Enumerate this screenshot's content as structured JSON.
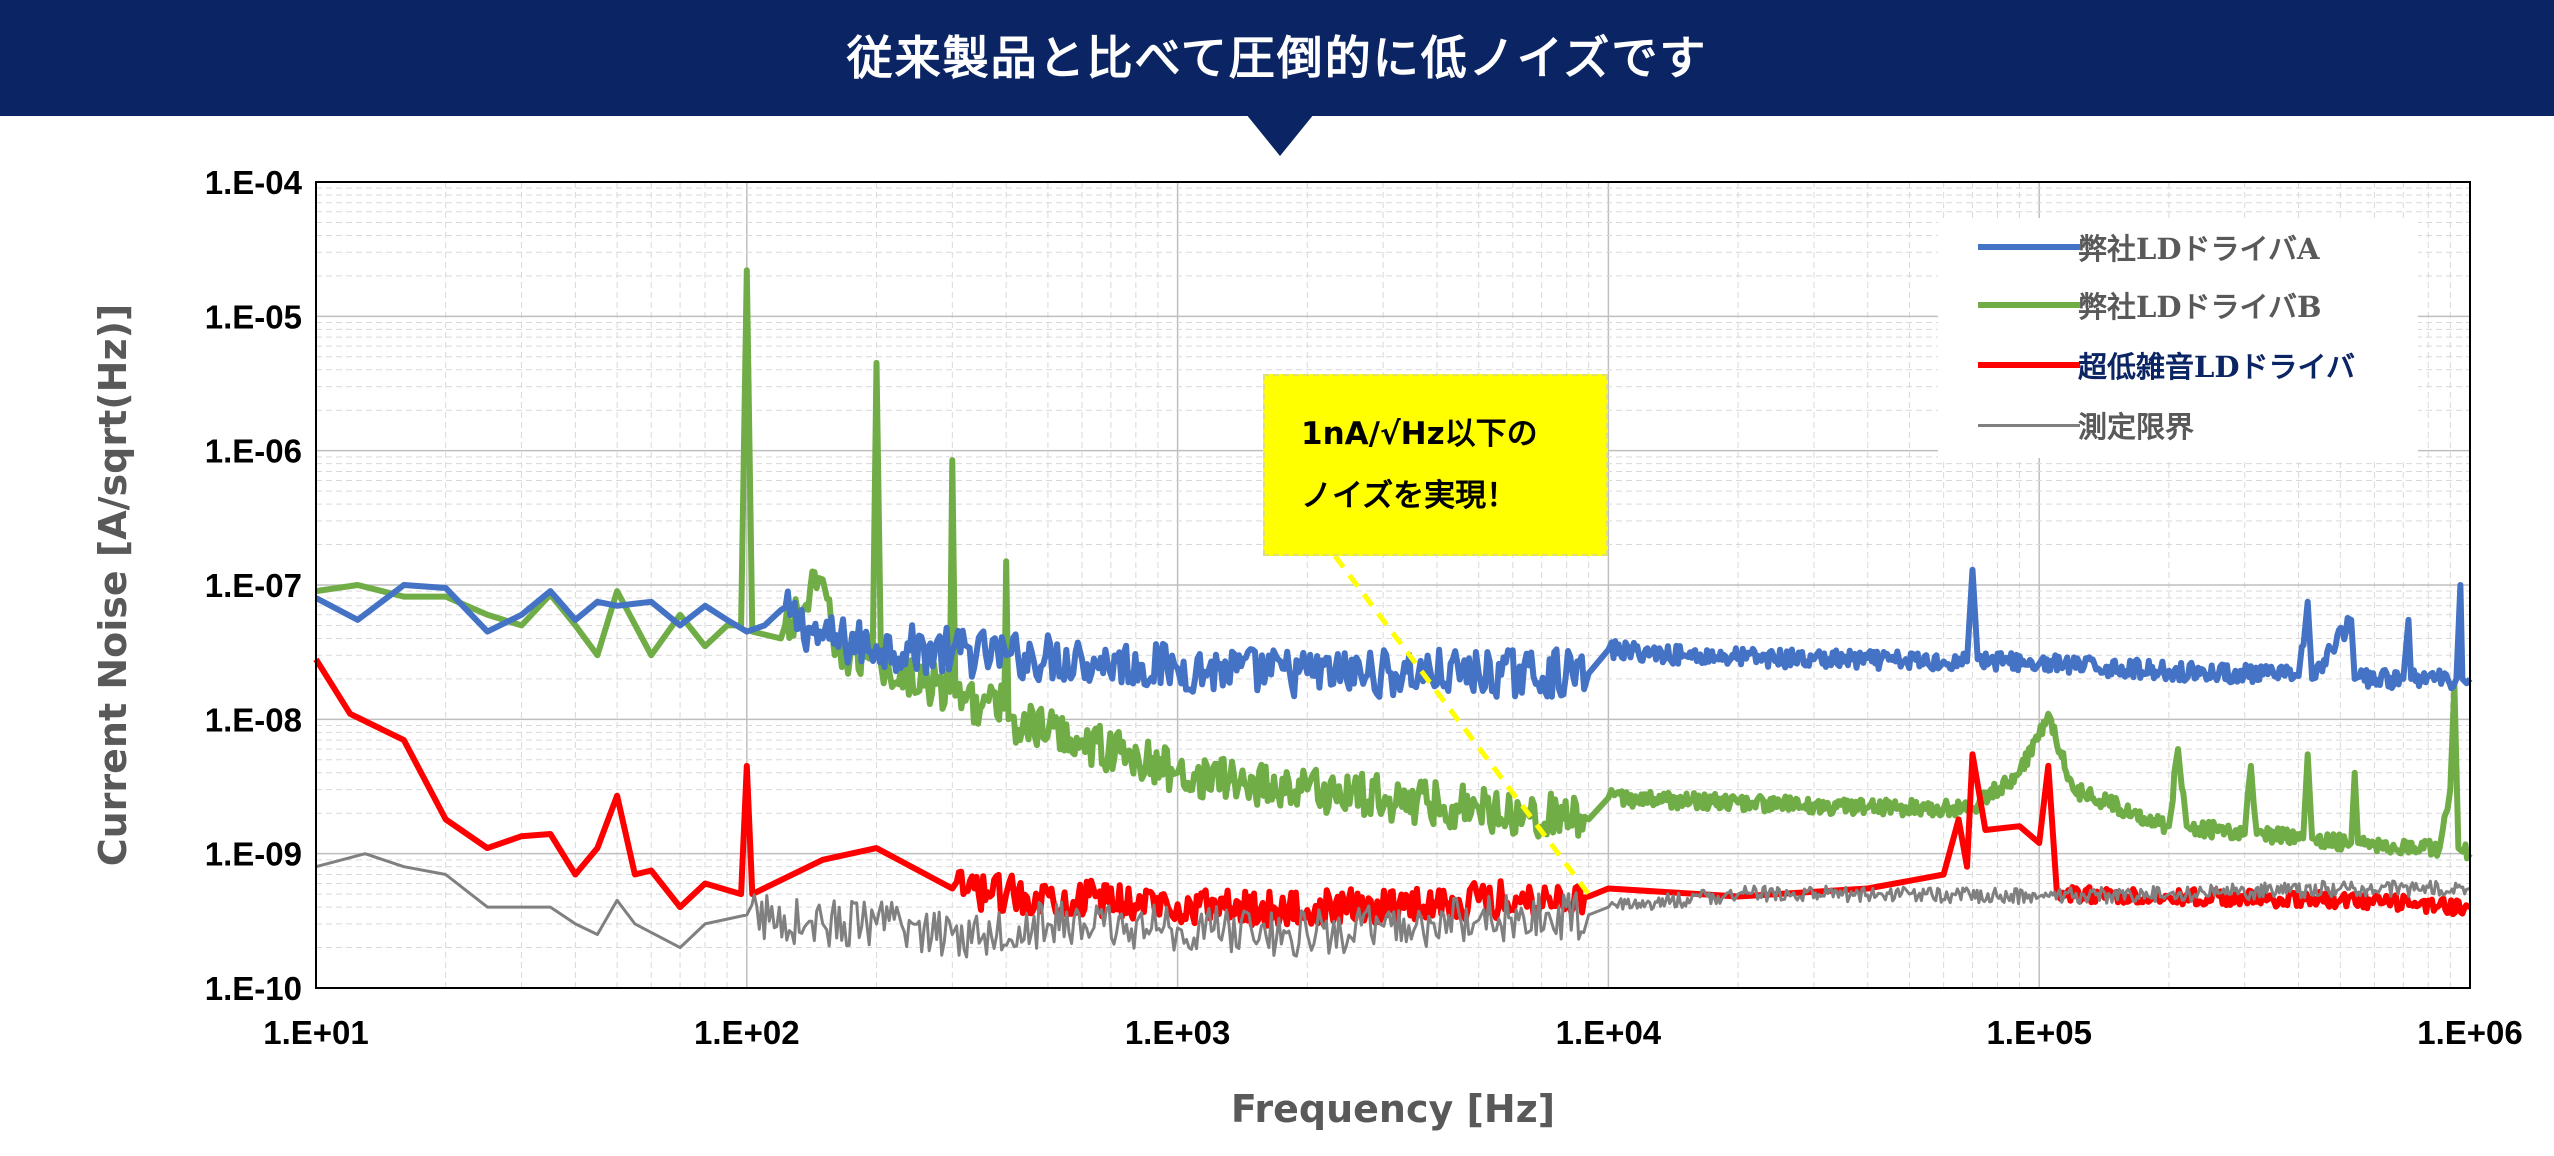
{
  "header": {
    "title": "従来製品と比べて圧倒的に低ノイズです"
  },
  "callout": {
    "line1": "1nA/√Hz以下の",
    "line2": "ノイズを実現！"
  },
  "colors": {
    "banner": "#0b2463",
    "callout": "#ffff00",
    "series_a": "#4472c4",
    "series_b": "#70ad47",
    "series_c": "#ff0000",
    "series_d": "#808080",
    "grid": "#d9d9d9",
    "axis_text": "#595959"
  },
  "chart_data": {
    "type": "line",
    "title": "",
    "xlabel": "Frequency [Hz]",
    "ylabel": "Current Noise [A/sqrt(Hz)]",
    "xscale": "log",
    "yscale": "log",
    "xlim": [
      10,
      1000000
    ],
    "ylim": [
      1e-10,
      0.0001
    ],
    "x_ticks": [
      "1.E+01",
      "1.E+02",
      "1.E+03",
      "1.E+04",
      "1.E+05",
      "1.E+06"
    ],
    "y_ticks": [
      "1.E-04",
      "1.E-05",
      "1.E-06",
      "1.E-07",
      "1.E-08",
      "1.E-09",
      "1.E-10"
    ],
    "grid": true,
    "legend_position": "top-right",
    "series": [
      {
        "name": "弊社LDドライバA",
        "color": "#4472c4",
        "width": 6,
        "points": [
          [
            10,
            8e-08
          ],
          [
            12.5,
            5.5e-08
          ],
          [
            16,
            1e-07
          ],
          [
            20,
            9.5e-08
          ],
          [
            25,
            4.5e-08
          ],
          [
            30,
            6e-08
          ],
          [
            35,
            9e-08
          ],
          [
            40,
            5.5e-08
          ],
          [
            45,
            7.5e-08
          ],
          [
            50,
            7e-08
          ],
          [
            60,
            7.5e-08
          ],
          [
            70,
            5e-08
          ],
          [
            80,
            7e-08
          ],
          [
            90,
            5.5e-08
          ],
          [
            100,
            4.5e-08
          ],
          [
            110,
            5e-08
          ],
          [
            120,
            6.5e-08
          ],
          [
            150,
            4e-08
          ],
          [
            200,
            3.5e-08
          ],
          [
            300,
            3.2e-08
          ],
          [
            400,
            3e-08
          ],
          [
            600,
            2.8e-08
          ],
          [
            1000,
            2.4e-08
          ],
          [
            2000,
            2.2e-08
          ],
          [
            5000,
            2.2e-08
          ],
          [
            9000,
            2.2e-08
          ],
          [
            10000,
            3.3e-08
          ],
          [
            15000,
            3e-08
          ],
          [
            30000,
            2.8e-08
          ],
          [
            60000,
            2.7e-08
          ],
          [
            68000,
            2.7e-08
          ],
          [
            70000,
            1.3e-07
          ],
          [
            72000,
            2.8e-08
          ],
          [
            100000,
            2.6e-08
          ],
          [
            200000,
            2.3e-08
          ],
          [
            400000,
            2.1e-08
          ],
          [
            420000,
            7.5e-08
          ],
          [
            430000,
            2e-08
          ],
          [
            530000,
            5.5e-08
          ],
          [
            540000,
            2e-08
          ],
          [
            700000,
            2e-08
          ],
          [
            720000,
            5.5e-08
          ],
          [
            730000,
            2e-08
          ],
          [
            930000,
            2e-08
          ],
          [
            950000,
            1e-07
          ],
          [
            960000,
            2e-08
          ],
          [
            1000000,
            2e-08
          ]
        ]
      },
      {
        "name": "弊社LDドライバB",
        "color": "#70ad47",
        "width": 6,
        "points": [
          [
            10,
            9e-08
          ],
          [
            12.5,
            1e-07
          ],
          [
            16,
            8.2e-08
          ],
          [
            20,
            8.2e-08
          ],
          [
            25,
            6e-08
          ],
          [
            30,
            5e-08
          ],
          [
            35,
            8.5e-08
          ],
          [
            40,
            5e-08
          ],
          [
            45,
            3e-08
          ],
          [
            50,
            9e-08
          ],
          [
            60,
            3e-08
          ],
          [
            70,
            6e-08
          ],
          [
            80,
            3.5e-08
          ],
          [
            90,
            5e-08
          ],
          [
            97,
            5e-08
          ],
          [
            100,
            2.2e-05
          ],
          [
            103,
            4.5e-08
          ],
          [
            120,
            4e-08
          ],
          [
            150,
            1.1e-07
          ],
          [
            160,
            3e-08
          ],
          [
            196,
            3e-08
          ],
          [
            200,
            4.5e-06
          ],
          [
            205,
            2.5e-08
          ],
          [
            296,
            1.6e-08
          ],
          [
            300,
            8.5e-07
          ],
          [
            305,
            1.5e-08
          ],
          [
            396,
            1.2e-08
          ],
          [
            400,
            1.5e-07
          ],
          [
            405,
            1e-08
          ],
          [
            600,
            7e-09
          ],
          [
            1000,
            4e-09
          ],
          [
            2000,
            3e-09
          ],
          [
            5000,
            2.2e-09
          ],
          [
            9000,
            1.8e-09
          ],
          [
            10000,
            2.6e-09
          ],
          [
            20000,
            2.4e-09
          ],
          [
            40000,
            2.2e-09
          ],
          [
            70000,
            2.2e-09
          ],
          [
            90000,
            4e-09
          ],
          [
            105000,
            1.1e-08
          ],
          [
            120000,
            3e-09
          ],
          [
            200000,
            1.6e-09
          ],
          [
            210000,
            6e-09
          ],
          [
            220000,
            1.6e-09
          ],
          [
            300000,
            1.4e-09
          ],
          [
            310000,
            4.5e-09
          ],
          [
            320000,
            1.4e-09
          ],
          [
            410000,
            1.3e-09
          ],
          [
            420000,
            5.5e-09
          ],
          [
            430000,
            1.3e-09
          ],
          [
            530000,
            1.2e-09
          ],
          [
            540000,
            4e-09
          ],
          [
            550000,
            1.2e-09
          ],
          [
            850000,
            1.1e-09
          ],
          [
            900000,
            3e-09
          ],
          [
            920000,
            1.8e-08
          ],
          [
            940000,
            1.1e-09
          ],
          [
            1000000,
            1e-09
          ]
        ]
      },
      {
        "name": "超低雑音LDドライバ",
        "color": "#ff0000",
        "width": 6,
        "points": [
          [
            10,
            2.8e-08
          ],
          [
            12,
            1.1e-08
          ],
          [
            16,
            7e-09
          ],
          [
            20,
            1.8e-09
          ],
          [
            25,
            1.1e-09
          ],
          [
            30,
            1.35e-09
          ],
          [
            35,
            1.4e-09
          ],
          [
            40,
            7e-10
          ],
          [
            45,
            1.1e-09
          ],
          [
            50,
            2.7e-09
          ],
          [
            55,
            7e-10
          ],
          [
            60,
            7.5e-10
          ],
          [
            70,
            4e-10
          ],
          [
            80,
            6e-10
          ],
          [
            97,
            5e-10
          ],
          [
            100,
            4.5e-09
          ],
          [
            103,
            5e-10
          ],
          [
            150,
            9e-10
          ],
          [
            200,
            1.1e-09
          ],
          [
            300,
            5.5e-10
          ],
          [
            400,
            5e-10
          ],
          [
            1000,
            4.2e-10
          ],
          [
            2000,
            3.8e-10
          ],
          [
            5000,
            4.5e-10
          ],
          [
            9000,
            4.8e-10
          ],
          [
            10000,
            5.5e-10
          ],
          [
            20000,
            4.8e-10
          ],
          [
            40000,
            5.5e-10
          ],
          [
            60000,
            7e-10
          ],
          [
            65000,
            1.8e-09
          ],
          [
            68000,
            8e-10
          ],
          [
            70000,
            5.5e-09
          ],
          [
            75000,
            1.5e-09
          ],
          [
            90000,
            1.6e-09
          ],
          [
            100000,
            1.2e-09
          ],
          [
            105000,
            4.5e-09
          ],
          [
            110000,
            5e-10
          ],
          [
            200000,
            4.8e-10
          ],
          [
            500000,
            4.5e-10
          ],
          [
            1000000,
            4e-10
          ]
        ]
      },
      {
        "name": "測定限界",
        "color": "#808080",
        "width": 3,
        "points": [
          [
            10,
            8e-10
          ],
          [
            13,
            1e-09
          ],
          [
            16,
            8e-10
          ],
          [
            20,
            7e-10
          ],
          [
            25,
            4e-10
          ],
          [
            30,
            4e-10
          ],
          [
            35,
            4e-10
          ],
          [
            40,
            3e-10
          ],
          [
            45,
            2.5e-10
          ],
          [
            50,
            4.5e-10
          ],
          [
            55,
            3e-10
          ],
          [
            70,
            2e-10
          ],
          [
            80,
            3e-10
          ],
          [
            100,
            3.5e-10
          ],
          [
            150,
            3e-10
          ],
          [
            200,
            3e-10
          ],
          [
            300,
            2.5e-10
          ],
          [
            500,
            3e-10
          ],
          [
            1000,
            2.8e-10
          ],
          [
            2000,
            2.5e-10
          ],
          [
            5000,
            3.2e-10
          ],
          [
            9000,
            3.5e-10
          ],
          [
            10000,
            4e-10
          ],
          [
            20000,
            5e-10
          ],
          [
            50000,
            5e-10
          ],
          [
            100000,
            4.8e-10
          ],
          [
            200000,
            5e-10
          ],
          [
            500000,
            5.5e-10
          ],
          [
            1000000,
            5.5e-10
          ]
        ]
      }
    ],
    "noisy_segments": [
      {
        "series": 0,
        "x_start": 120,
        "x_end": 9000,
        "amplitude": 0.18,
        "freq": 2.3
      },
      {
        "series": 0,
        "x_start": 10000,
        "x_end": 1000000,
        "amplitude": 0.07,
        "freq": 1.7
      },
      {
        "series": 1,
        "x_start": 120,
        "x_end": 9000,
        "amplitude": 0.17,
        "freq": 2.1
      },
      {
        "series": 1,
        "x_start": 10000,
        "x_end": 1000000,
        "amplitude": 0.06,
        "freq": 1.5
      },
      {
        "series": 2,
        "x_start": 300,
        "x_end": 9000,
        "amplitude": 0.14,
        "freq": 2.2
      },
      {
        "series": 2,
        "x_start": 110000,
        "x_end": 1000000,
        "amplitude": 0.06,
        "freq": 1.9
      },
      {
        "series": 3,
        "x_start": 100,
        "x_end": 9000,
        "amplitude": 0.18,
        "freq": 2.5
      },
      {
        "series": 3,
        "x_start": 10000,
        "x_end": 1000000,
        "amplitude": 0.06,
        "freq": 1.8
      }
    ]
  }
}
